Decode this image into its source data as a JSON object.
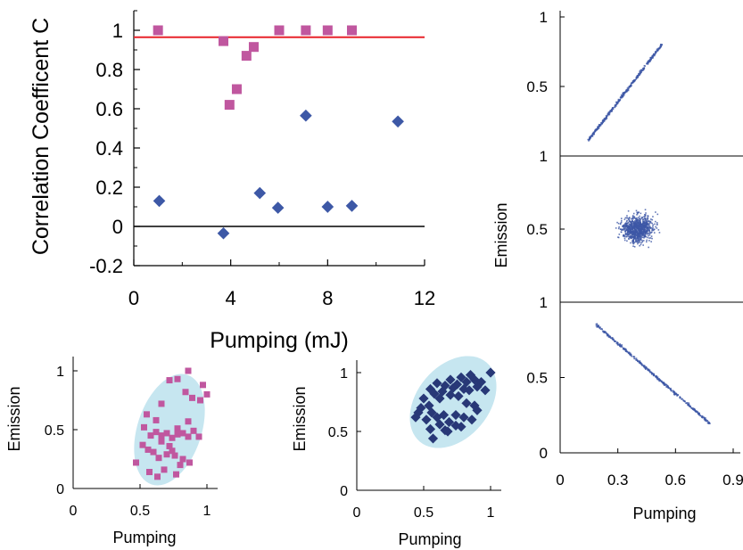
{
  "chart_data": [
    {
      "id": "main",
      "type": "scatter",
      "xlabel": "Pumping (mJ)",
      "ylabel": "Correlation Coefficent C",
      "xlim": [
        0,
        12
      ],
      "ylim": [
        -0.2,
        1.1
      ],
      "xticks": [
        "0",
        "4",
        "8",
        "12"
      ],
      "yticks": [
        "-0.2",
        "0",
        "0.2",
        "0.4",
        "0.6",
        "0.8",
        "1"
      ],
      "reference_lines": [
        {
          "y": 0.965,
          "color": "#e8232a"
        },
        {
          "y": 0,
          "color": "#000000"
        }
      ],
      "series": [
        {
          "marker": "square",
          "color": "#c0579f",
          "points": [
            [
              1.0,
              1.0
            ],
            [
              3.7,
              0.945
            ],
            [
              3.95,
              0.62
            ],
            [
              4.25,
              0.7
            ],
            [
              4.65,
              0.87
            ],
            [
              4.95,
              0.915
            ],
            [
              6.0,
              1.0
            ],
            [
              7.1,
              1.0
            ],
            [
              8.0,
              1.0
            ],
            [
              9.0,
              1.0
            ]
          ]
        },
        {
          "marker": "diamond",
          "color": "#3d58a6",
          "points": [
            [
              1.05,
              0.13
            ],
            [
              3.7,
              -0.035
            ],
            [
              5.2,
              0.17
            ],
            [
              5.95,
              0.095
            ],
            [
              7.1,
              0.565
            ],
            [
              8.0,
              0.1
            ],
            [
              9.0,
              0.105
            ],
            [
              10.9,
              0.535
            ]
          ]
        }
      ]
    },
    {
      "id": "inset-left",
      "type": "scatter",
      "xlabel": "Pumping",
      "ylabel": "Emission",
      "xlim": [
        0,
        1
      ],
      "ylim": [
        0,
        1
      ],
      "xticks": [
        "0",
        "0.5",
        "1"
      ],
      "yticks": [
        "0",
        "0.5",
        "1"
      ],
      "ellipse": {
        "cx": 0.72,
        "cy": 0.5,
        "rx": 0.24,
        "ry": 0.49,
        "angle": 18,
        "color": "#c6e6f0"
      },
      "series": [
        {
          "marker": "square",
          "color": "#c0579f",
          "points": [
            [
              0.86,
              1.0
            ],
            [
              0.78,
              0.93
            ],
            [
              0.97,
              0.88
            ],
            [
              0.72,
              0.92
            ],
            [
              1.0,
              0.8
            ],
            [
              0.84,
              0.82
            ],
            [
              0.95,
              0.75
            ],
            [
              0.66,
              0.72
            ],
            [
              0.89,
              0.77
            ],
            [
              0.55,
              0.63
            ],
            [
              0.62,
              0.58
            ],
            [
              0.86,
              0.57
            ],
            [
              0.78,
              0.51
            ],
            [
              0.53,
              0.52
            ],
            [
              0.58,
              0.45
            ],
            [
              0.62,
              0.48
            ],
            [
              0.66,
              0.45
            ],
            [
              0.7,
              0.47
            ],
            [
              0.74,
              0.43
            ],
            [
              0.78,
              0.46
            ],
            [
              0.82,
              0.47
            ],
            [
              0.86,
              0.44
            ],
            [
              0.9,
              0.49
            ],
            [
              0.94,
              0.44
            ],
            [
              0.66,
              0.4
            ],
            [
              0.72,
              0.36
            ],
            [
              0.52,
              0.37
            ],
            [
              0.56,
              0.33
            ],
            [
              0.6,
              0.31
            ],
            [
              0.64,
              0.26
            ],
            [
              0.7,
              0.29
            ],
            [
              0.76,
              0.28
            ],
            [
              0.82,
              0.25
            ],
            [
              0.87,
              0.22
            ],
            [
              0.8,
              0.2
            ],
            [
              0.47,
              0.22
            ],
            [
              0.68,
              0.16
            ],
            [
              0.63,
              0.1
            ],
            [
              0.57,
              0.14
            ],
            [
              0.77,
              0.12
            ],
            [
              0.74,
              0.32
            ]
          ]
        }
      ]
    },
    {
      "id": "inset-middle",
      "type": "scatter",
      "xlabel": "Pumping",
      "ylabel": "Emission",
      "xlim": [
        0,
        1
      ],
      "ylim": [
        0,
        1
      ],
      "xticks": [
        "0",
        "0.5",
        "1"
      ],
      "yticks": [
        "0",
        "0.5",
        "1"
      ],
      "ellipse": {
        "cx": 0.72,
        "cy": 0.75,
        "rx": 0.27,
        "ry": 0.44,
        "angle": 40,
        "color": "#c6e6f0"
      },
      "series": [
        {
          "marker": "diamond",
          "color": "#283877",
          "points": [
            [
              1.0,
              1.0
            ],
            [
              0.85,
              0.98
            ],
            [
              0.78,
              0.96
            ],
            [
              0.88,
              0.94
            ],
            [
              0.7,
              0.94
            ],
            [
              0.93,
              0.92
            ],
            [
              0.82,
              0.92
            ],
            [
              0.6,
              0.91
            ],
            [
              0.75,
              0.9
            ],
            [
              0.66,
              0.89
            ],
            [
              0.9,
              0.88
            ],
            [
              0.72,
              0.87
            ],
            [
              0.8,
              0.86
            ],
            [
              0.55,
              0.86
            ],
            [
              0.84,
              0.85
            ],
            [
              0.64,
              0.84
            ],
            [
              0.96,
              0.85
            ],
            [
              0.58,
              0.82
            ],
            [
              0.7,
              0.81
            ],
            [
              0.76,
              0.8
            ],
            [
              0.5,
              0.78
            ],
            [
              0.62,
              0.78
            ],
            [
              0.82,
              0.74
            ],
            [
              0.54,
              0.72
            ],
            [
              0.88,
              0.72
            ],
            [
              0.48,
              0.7
            ],
            [
              0.56,
              0.66
            ],
            [
              0.65,
              0.64
            ],
            [
              0.74,
              0.64
            ],
            [
              0.6,
              0.62
            ],
            [
              0.44,
              0.62
            ],
            [
              0.8,
              0.62
            ],
            [
              0.52,
              0.6
            ],
            [
              0.69,
              0.58
            ],
            [
              0.86,
              0.6
            ],
            [
              0.62,
              0.56
            ],
            [
              0.74,
              0.55
            ],
            [
              0.55,
              0.52
            ],
            [
              0.66,
              0.51
            ],
            [
              0.78,
              0.54
            ],
            [
              0.57,
              0.44
            ],
            [
              0.68,
              0.5
            ],
            [
              0.9,
              0.68
            ],
            [
              0.46,
              0.66
            ]
          ]
        }
      ]
    },
    {
      "id": "right-panels",
      "type": "scatter",
      "xlabel": "Pumping",
      "ylabel": "Emission",
      "xlim": [
        0,
        1
      ],
      "xticks": [
        "0",
        "0.3",
        "0.6",
        "0.9"
      ],
      "panels": [
        {
          "position": "top",
          "ylim": [
            0,
            1
          ],
          "yticks": [
            "0.5",
            "1"
          ],
          "pattern": "positive-diagonal",
          "color": "#3d58a6"
        },
        {
          "position": "middle",
          "ylim": [
            0,
            1
          ],
          "yticks": [
            "0.5",
            "1"
          ],
          "pattern": "uncorrelated-cloud",
          "color": "#3d58a6"
        },
        {
          "position": "bottom",
          "ylim": [
            0,
            1
          ],
          "yticks": [
            "0",
            "0.5",
            "1"
          ],
          "pattern": "negative-diagonal",
          "color": "#3d58a6"
        }
      ]
    }
  ]
}
